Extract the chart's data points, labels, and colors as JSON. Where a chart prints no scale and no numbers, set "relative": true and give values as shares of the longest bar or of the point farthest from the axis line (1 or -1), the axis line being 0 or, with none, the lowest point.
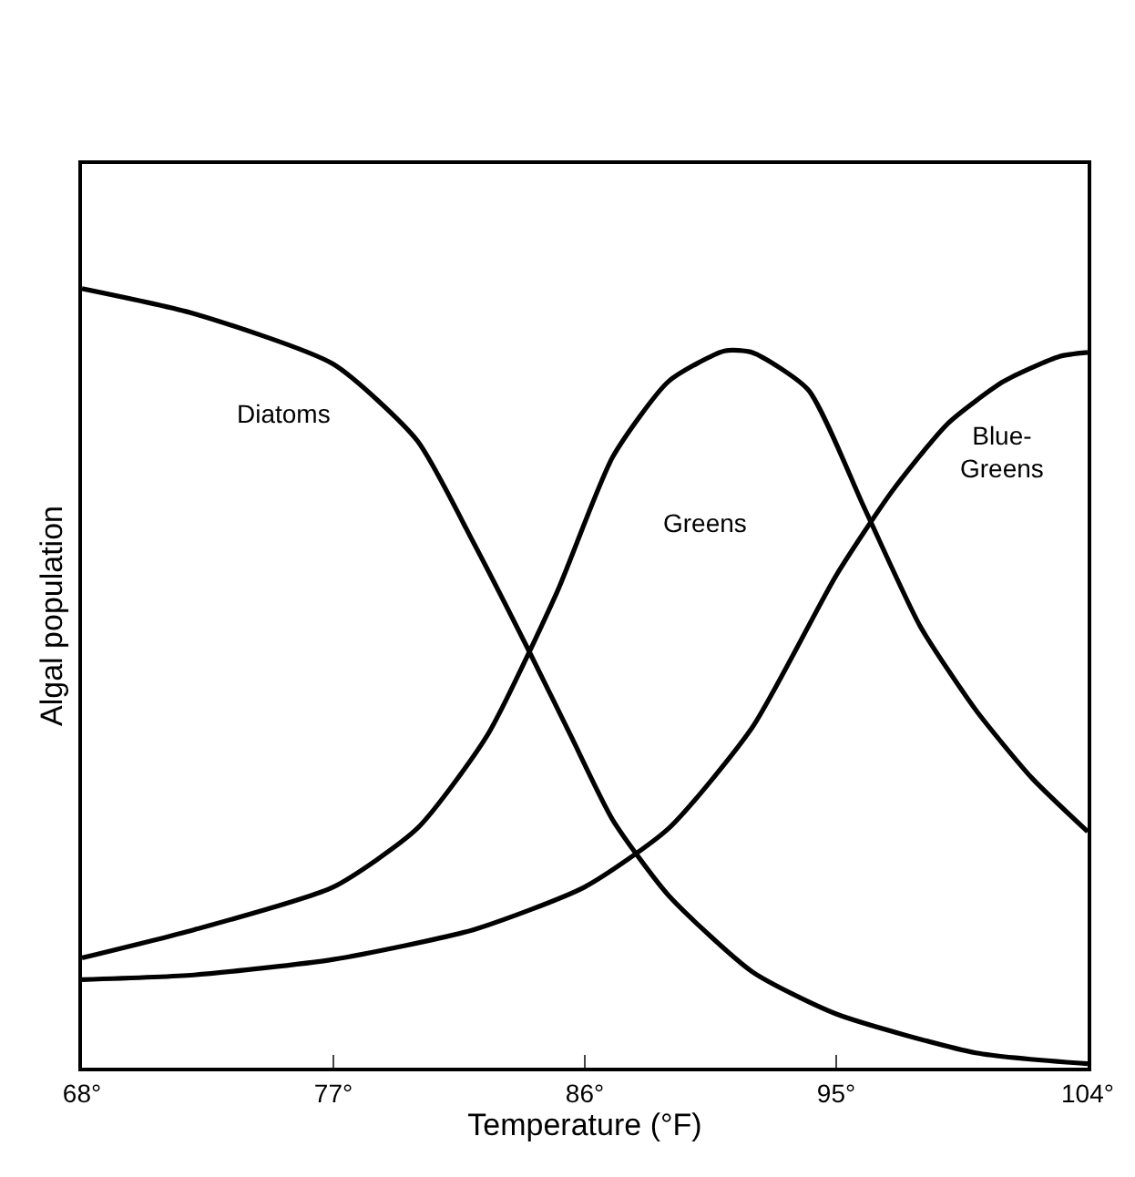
{
  "chart_data": {
    "type": "line",
    "relative": true,
    "xlabel": "Temperature (°F)",
    "ylabel": "Algal population",
    "xlim": [
      68,
      104
    ],
    "xticks": [
      {
        "value": 68,
        "label": "68°"
      },
      {
        "value": 77,
        "label": "77°"
      },
      {
        "value": 86,
        "label": "86°"
      },
      {
        "value": 95,
        "label": "95°"
      },
      {
        "value": 104,
        "label": "104°"
      }
    ],
    "legend": false,
    "marker": "none",
    "line_style": "solid",
    "series": [
      {
        "name": "Diatoms",
        "color": "#000000",
        "x": [
          68,
          72,
          77,
          80,
          82,
          84,
          85.5,
          87,
          89,
          92,
          95,
          100,
          104
        ],
        "values": [
          1.0,
          0.968,
          0.903,
          0.805,
          0.675,
          0.535,
          0.426,
          0.318,
          0.221,
          0.123,
          0.069,
          0.019,
          0.005
        ]
      },
      {
        "name": "Greens",
        "color": "#000000",
        "x": [
          68,
          72,
          77,
          80,
          82.5,
          85,
          87,
          89,
          91,
          92,
          94,
          96,
          98,
          100,
          102,
          104
        ],
        "values": [
          0.141,
          0.177,
          0.232,
          0.307,
          0.426,
          0.61,
          0.784,
          0.881,
          0.92,
          0.918,
          0.87,
          0.719,
          0.567,
          0.459,
          0.372,
          0.303
        ]
      },
      {
        "name": "Blue-Greens",
        "color": "#000000",
        "x": [
          68,
          72,
          77,
          82,
          86,
          89,
          92,
          95,
          97,
          99,
          101,
          103,
          104
        ],
        "values": [
          0.113,
          0.119,
          0.139,
          0.177,
          0.232,
          0.307,
          0.437,
          0.632,
          0.74,
          0.827,
          0.881,
          0.913,
          0.918
        ]
      }
    ]
  }
}
